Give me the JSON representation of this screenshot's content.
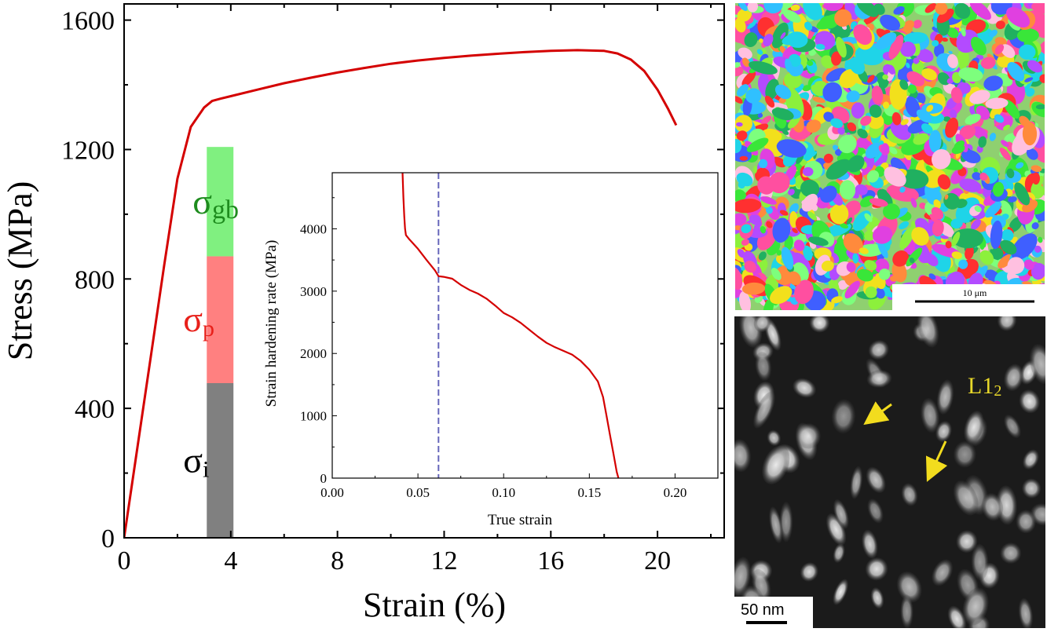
{
  "chart_data": [
    {
      "type": "line",
      "xlabel": "Strain (%)",
      "ylabel": "Stress (MPa)",
      "xlim": [
        0,
        22.5
      ],
      "ylim": [
        0,
        1650
      ],
      "xticks": [
        0,
        4,
        8,
        12,
        16,
        20
      ],
      "yticks": [
        0,
        400,
        800,
        1200,
        1600
      ],
      "series": [
        {
          "color": "#d40000",
          "x": [
            0,
            0.5,
            1.0,
            1.5,
            2.0,
            2.5,
            3.0,
            3.3,
            3.6,
            4.0,
            5.0,
            6.0,
            7.0,
            8.0,
            9.0,
            10.0,
            11.0,
            12.0,
            13.0,
            14.0,
            15.0,
            16.0,
            17.0,
            18.0,
            18.5,
            19.0,
            19.5,
            20.0,
            20.4,
            20.7
          ],
          "y": [
            0,
            280,
            560,
            840,
            1110,
            1270,
            1330,
            1350,
            1357,
            1365,
            1385,
            1405,
            1422,
            1438,
            1452,
            1465,
            1475,
            1483,
            1490,
            1496,
            1501,
            1505,
            1507,
            1505,
            1497,
            1478,
            1443,
            1385,
            1325,
            1275
          ]
        }
      ],
      "stacked_bar": {
        "x_range": [
          3.1,
          4.1
        ],
        "segments": [
          {
            "label": "σ",
            "subscript": "i",
            "from": 0,
            "to": 478,
            "color": "#808080",
            "label_color": "#000000"
          },
          {
            "label": "σ",
            "subscript": "p",
            "from": 478,
            "to": 870,
            "color": "#ff8080",
            "label_color": "#e8201a"
          },
          {
            "label": "σ",
            "subscript": "gb",
            "from": 870,
            "to": 1208,
            "color": "#80f080",
            "label_color": "#1e8c1e"
          }
        ]
      }
    },
    {
      "type": "line",
      "xlabel": "True strain",
      "ylabel": "Strain hardening rate (MPa)",
      "xlim": [
        0,
        0.225
      ],
      "ylim": [
        0,
        4900
      ],
      "xticks": [
        0.0,
        0.05,
        0.1,
        0.15,
        0.2
      ],
      "xticklabels": [
        "0.00",
        "0.05",
        "0.10",
        "0.15",
        "0.20"
      ],
      "yticks": [
        0,
        1000,
        2000,
        3000,
        4000
      ],
      "vline": {
        "x": 0.062,
        "color": "#6666bb"
      },
      "series": [
        {
          "color": "#d40000",
          "x": [
            0.041,
            0.0415,
            0.042,
            0.0425,
            0.043,
            0.045,
            0.05,
            0.055,
            0.06,
            0.062,
            0.065,
            0.07,
            0.075,
            0.08,
            0.085,
            0.09,
            0.095,
            0.1,
            0.105,
            0.11,
            0.115,
            0.12,
            0.125,
            0.13,
            0.135,
            0.14,
            0.145,
            0.15,
            0.155,
            0.158,
            0.16,
            0.162,
            0.164,
            0.166,
            0.167
          ],
          "y": [
            4900,
            4500,
            4200,
            4000,
            3900,
            3830,
            3680,
            3500,
            3330,
            3240,
            3230,
            3200,
            3100,
            3020,
            2960,
            2880,
            2770,
            2650,
            2580,
            2490,
            2380,
            2270,
            2170,
            2100,
            2040,
            1980,
            1880,
            1740,
            1550,
            1300,
            1000,
            700,
            400,
            100,
            0
          ]
        }
      ]
    }
  ],
  "images": {
    "ebsd": {
      "scale_bar": "10 μm"
    },
    "tem": {
      "scale_bar": "50 nm",
      "label": "L1",
      "label_sub": "2",
      "label_color": "#e8d82a",
      "arrow_color": "#f2dc1e"
    }
  }
}
